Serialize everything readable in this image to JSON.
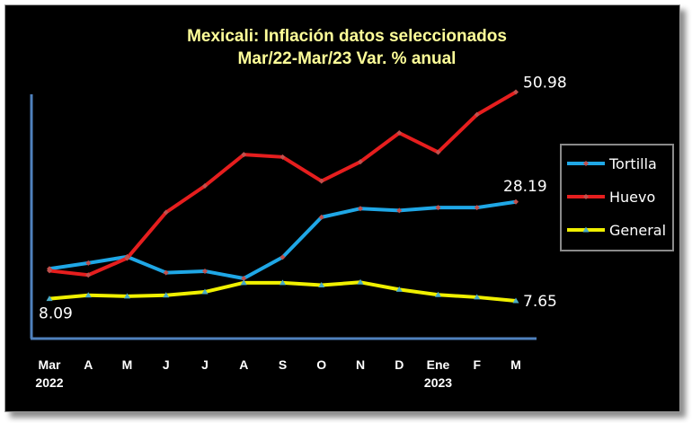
{
  "chart_data": {
    "type": "line",
    "title_lines": [
      "Mexicali: Inflación datos seleccionados",
      "Mar/22-Mar/23 Var. % anual"
    ],
    "categories": [
      "Mar",
      "A",
      "M",
      "J",
      "J",
      "A",
      "S",
      "O",
      "N",
      "D",
      "Ene",
      "F",
      "M"
    ],
    "year_labels": [
      {
        "index": 0,
        "text": "2022"
      },
      {
        "index": 10,
        "text": "2023"
      }
    ],
    "ylim": [
      0,
      55
    ],
    "grid": false,
    "legend_position": "right",
    "series": [
      {
        "name": "Tortilla",
        "color": "#1fa7e6",
        "marker": "diamond",
        "marker_color": "#c0504d",
        "values": [
          14.3,
          15.5,
          16.8,
          13.5,
          13.8,
          12.3,
          16.7,
          25.0,
          26.8,
          26.4,
          27.0,
          27.0,
          28.19
        ]
      },
      {
        "name": "Huevo",
        "color": "#e61e1e",
        "marker": "diamond",
        "marker_color": "#c0504d",
        "values": [
          13.9,
          13.0,
          16.5,
          26.0,
          31.5,
          38.0,
          37.5,
          32.5,
          36.5,
          42.5,
          38.5,
          46.3,
          50.98
        ]
      },
      {
        "name": "General",
        "color": "#f0f000",
        "marker": "triangle",
        "marker_color": "#4bacc6",
        "values": [
          8.09,
          8.8,
          8.6,
          8.8,
          9.5,
          11.4,
          11.4,
          10.9,
          11.5,
          10.0,
          8.9,
          8.4,
          7.65
        ]
      }
    ],
    "data_labels": [
      {
        "series": "Huevo",
        "index": 12,
        "text": "50.98"
      },
      {
        "series": "Tortilla",
        "index": 12,
        "text": "28.19"
      },
      {
        "series": "General",
        "index": 12,
        "text": "7.65"
      },
      {
        "series": "General",
        "index": 0,
        "text": "8.09"
      }
    ]
  }
}
